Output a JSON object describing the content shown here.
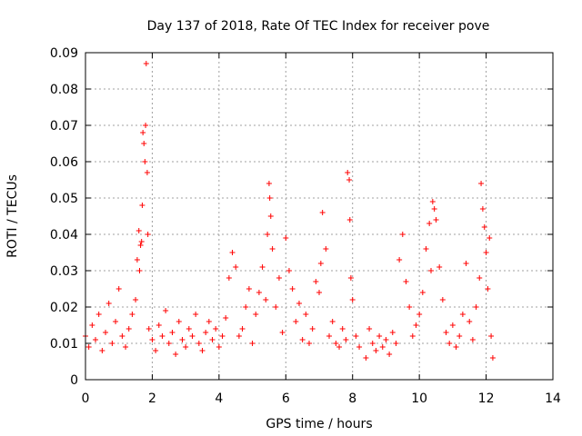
{
  "chart_data": {
    "type": "scatter",
    "title": "Day 137 of 2018, Rate Of TEC Index for receiver pove",
    "xlabel": "GPS time / hours",
    "ylabel": "ROTI / TECUs",
    "xlim": [
      0,
      14
    ],
    "ylim": [
      0,
      0.09
    ],
    "xticks": [
      "0",
      "2",
      "4",
      "6",
      "8",
      "10",
      "12",
      "14"
    ],
    "yticks": [
      "0",
      "0.01",
      "0.02",
      "0.03",
      "0.04",
      "0.05",
      "0.06",
      "0.07",
      "0.08",
      "0.09"
    ],
    "grid": true,
    "marker": "+",
    "color": "#ff0000",
    "series": [
      {
        "x": [
          0.0,
          0.1,
          0.2,
          0.3,
          0.4,
          0.5,
          0.6,
          0.7,
          0.8,
          0.9,
          1.0,
          1.1,
          1.2,
          1.3,
          1.4,
          1.5,
          1.55,
          1.6,
          1.62,
          1.65,
          1.68,
          1.7,
          1.72,
          1.75,
          1.78,
          1.8,
          1.82,
          1.85,
          1.87,
          1.9,
          2.0,
          2.1,
          2.2,
          2.3,
          2.4,
          2.5,
          2.6,
          2.7,
          2.8,
          2.9,
          3.0,
          3.1,
          3.2,
          3.3,
          3.4,
          3.5,
          3.6,
          3.7,
          3.8,
          3.9,
          4.0,
          4.1,
          4.2,
          4.3,
          4.4,
          4.5,
          4.6,
          4.7,
          4.8,
          4.9,
          5.0,
          5.1,
          5.2,
          5.3,
          5.4,
          5.45,
          5.5,
          5.52,
          5.55,
          5.6,
          5.7,
          5.8,
          5.9,
          6.0,
          6.1,
          6.2,
          6.3,
          6.4,
          6.5,
          6.6,
          6.7,
          6.8,
          6.9,
          7.0,
          7.05,
          7.1,
          7.2,
          7.3,
          7.4,
          7.5,
          7.6,
          7.7,
          7.8,
          7.85,
          7.9,
          7.92,
          7.95,
          8.0,
          8.1,
          8.2,
          8.4,
          8.5,
          8.6,
          8.7,
          8.8,
          8.9,
          9.0,
          9.1,
          9.2,
          9.3,
          9.4,
          9.5,
          9.6,
          9.7,
          9.8,
          9.9,
          10.0,
          10.1,
          10.2,
          10.3,
          10.35,
          10.4,
          10.45,
          10.5,
          10.6,
          10.7,
          10.8,
          10.9,
          11.0,
          11.1,
          11.2,
          11.3,
          11.4,
          11.5,
          11.6,
          11.7,
          11.8,
          11.85,
          11.9,
          11.95,
          12.0,
          12.05,
          12.1,
          12.15,
          12.2
        ],
        "y": [
          0.012,
          0.009,
          0.015,
          0.011,
          0.018,
          0.008,
          0.013,
          0.021,
          0.01,
          0.016,
          0.025,
          0.012,
          0.009,
          0.014,
          0.018,
          0.022,
          0.033,
          0.041,
          0.03,
          0.037,
          0.038,
          0.048,
          0.068,
          0.065,
          0.06,
          0.07,
          0.087,
          0.057,
          0.04,
          0.014,
          0.011,
          0.008,
          0.015,
          0.012,
          0.019,
          0.01,
          0.013,
          0.007,
          0.016,
          0.011,
          0.009,
          0.014,
          0.012,
          0.018,
          0.01,
          0.008,
          0.013,
          0.016,
          0.011,
          0.014,
          0.009,
          0.012,
          0.017,
          0.028,
          0.035,
          0.031,
          0.012,
          0.014,
          0.02,
          0.025,
          0.01,
          0.018,
          0.024,
          0.031,
          0.022,
          0.04,
          0.054,
          0.05,
          0.045,
          0.036,
          0.02,
          0.028,
          0.013,
          0.039,
          0.03,
          0.025,
          0.016,
          0.021,
          0.011,
          0.018,
          0.01,
          0.014,
          0.027,
          0.024,
          0.032,
          0.046,
          0.036,
          0.012,
          0.016,
          0.01,
          0.009,
          0.014,
          0.011,
          0.057,
          0.055,
          0.044,
          0.028,
          0.022,
          0.012,
          0.009,
          0.006,
          0.014,
          0.01,
          0.008,
          0.012,
          0.009,
          0.011,
          0.007,
          0.013,
          0.01,
          0.033,
          0.04,
          0.027,
          0.02,
          0.012,
          0.015,
          0.018,
          0.024,
          0.036,
          0.043,
          0.03,
          0.049,
          0.047,
          0.044,
          0.031,
          0.022,
          0.013,
          0.01,
          0.015,
          0.009,
          0.012,
          0.018,
          0.032,
          0.016,
          0.011,
          0.02,
          0.028,
          0.054,
          0.047,
          0.042,
          0.035,
          0.025,
          0.039,
          0.012,
          0.006
        ]
      }
    ]
  }
}
